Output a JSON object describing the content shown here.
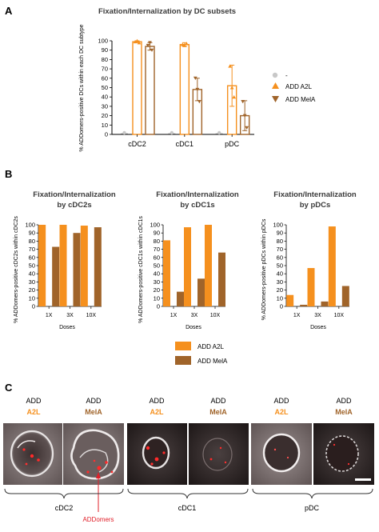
{
  "panels": {
    "a": "A",
    "b": "B",
    "c": "C"
  },
  "chart_data": [
    {
      "type": "bar",
      "title": "Fixation/Internalization by DC subsets",
      "ylabel": "% ADDomers-positive DCs within each DC subtype",
      "ylim": [
        0,
        100
      ],
      "yticks": [
        0,
        10,
        20,
        30,
        40,
        50,
        60,
        70,
        80,
        90,
        100
      ],
      "categories": [
        "cDC2",
        "cDC1",
        "pDC"
      ],
      "series": [
        {
          "name": "-",
          "values": [
            0,
            0,
            0
          ],
          "color": "#c8c8c8",
          "marker": "circle"
        },
        {
          "name": "ADD A2L",
          "values": [
            99,
            96,
            52
          ],
          "color": "#f5901e",
          "marker": "triangle-up",
          "errors": [
            1,
            2,
            22
          ],
          "points": [
            [
              99,
              100,
              98
            ],
            [
              96,
              95,
              97
            ],
            [
              73,
              50,
              40
            ]
          ]
        },
        {
          "name": "ADD MelA",
          "values": [
            94,
            48,
            20
          ],
          "color": "#a0642a",
          "marker": "triangle-down",
          "errors": [
            4,
            12,
            16
          ],
          "points": [
            [
              95,
              98,
              90
            ],
            [
              60,
              48,
              35
            ],
            [
              35,
              20,
              7
            ]
          ]
        }
      ],
      "legend_position": "right"
    },
    {
      "type": "bar",
      "title": "Fixation/Internalization by cDC2s",
      "title_lines": [
        "Fixation/Internalization",
        "by cDC2s"
      ],
      "ylabel": "% ADDomers-positive cDC2s within cDC2s",
      "xlabel": "Doses",
      "ylim": [
        0,
        100
      ],
      "yticks": [
        0,
        10,
        20,
        30,
        40,
        50,
        60,
        70,
        80,
        90,
        100
      ],
      "categories": [
        "1X",
        "3X",
        "10X"
      ],
      "series": [
        {
          "name": "ADD A2L",
          "values": [
            100,
            100,
            99
          ],
          "color": "#f5901e"
        },
        {
          "name": "ADD MelA",
          "values": [
            73,
            90,
            97
          ],
          "color": "#a0642a"
        }
      ]
    },
    {
      "type": "bar",
      "title": "Fixation/Internalization by cDC1s",
      "title_lines": [
        "Fixation/Internalization",
        "by cDC1s"
      ],
      "ylabel": "% ADDomers-positive cDC1s within cDC1s",
      "xlabel": "Doses",
      "ylim": [
        0,
        100
      ],
      "yticks": [
        0,
        10,
        20,
        30,
        40,
        50,
        60,
        70,
        80,
        90,
        100
      ],
      "categories": [
        "1X",
        "3X",
        "10X"
      ],
      "series": [
        {
          "name": "ADD A2L",
          "values": [
            81,
            97,
            100
          ],
          "color": "#f5901e"
        },
        {
          "name": "ADD MelA",
          "values": [
            18,
            34,
            66
          ],
          "color": "#a0642a"
        }
      ]
    },
    {
      "type": "bar",
      "title": "Fixation/Internalization by pDCs",
      "title_lines": [
        "Fixation/Internalization",
        "by pDCs"
      ],
      "ylabel": "% ADDomers-positive pDCs within pDCs",
      "xlabel": "Doses",
      "ylim": [
        0,
        100
      ],
      "yticks": [
        0,
        10,
        20,
        30,
        40,
        50,
        60,
        70,
        80,
        90,
        100
      ],
      "categories": [
        "1X",
        "3X",
        "10X"
      ],
      "series": [
        {
          "name": "ADD A2L",
          "values": [
            14,
            47,
            98
          ],
          "color": "#f5901e"
        },
        {
          "name": "ADD MelA",
          "values": [
            2,
            6,
            25
          ],
          "color": "#a0642a"
        }
      ]
    }
  ],
  "legend_b": [
    {
      "label": "ADD A2L",
      "color": "#f5901e"
    },
    {
      "label": "ADD MelA",
      "color": "#a0642a"
    }
  ],
  "microscopy": {
    "images": [
      {
        "line1": "ADD",
        "line2": "A2L",
        "line2_color": "#f5901e"
      },
      {
        "line1": "ADD",
        "line2": "MelA",
        "line2_color": "#a0642a"
      },
      {
        "line1": "ADD",
        "line2": "A2L",
        "line2_color": "#f5901e"
      },
      {
        "line1": "ADD",
        "line2": "MelA",
        "line2_color": "#a0642a"
      },
      {
        "line1": "ADD",
        "line2": "A2L",
        "line2_color": "#f5901e"
      },
      {
        "line1": "ADD",
        "line2": "MelA",
        "line2_color": "#a0642a"
      }
    ],
    "groups": [
      "cDC2",
      "cDC1",
      "pDC"
    ],
    "annotation": "ADDomers",
    "annotation_color": "#e0202a"
  }
}
